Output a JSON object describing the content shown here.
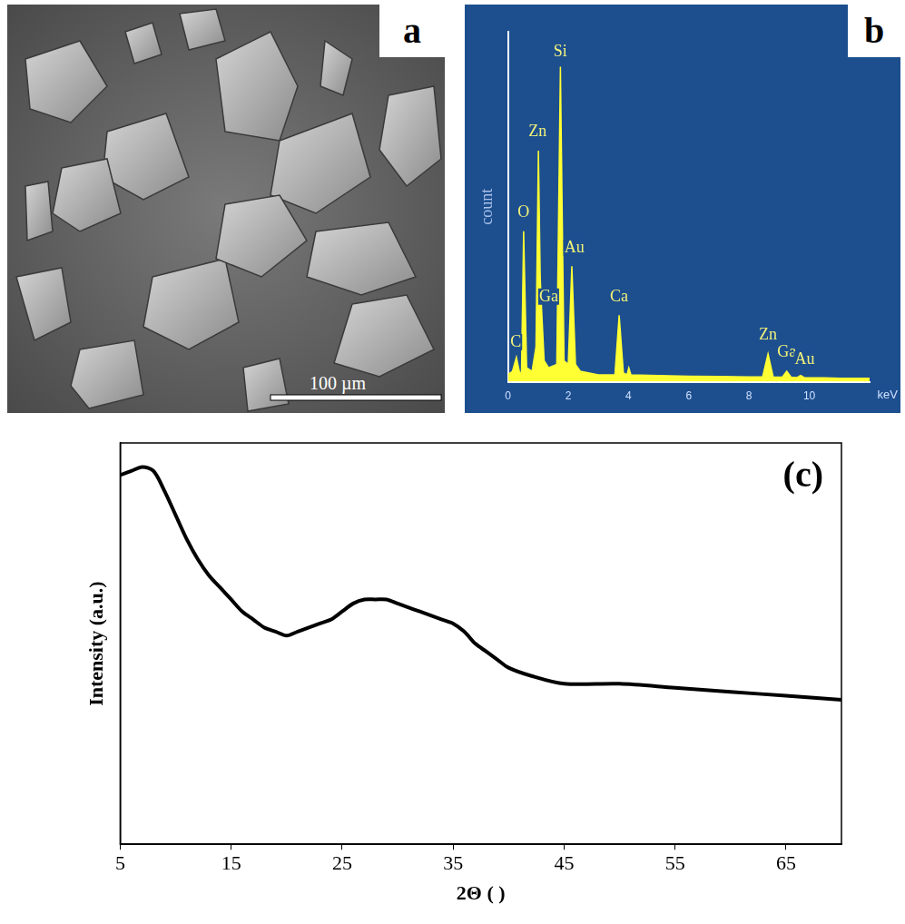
{
  "micrograph": {
    "panel": "a",
    "scale_bar": "100 µm"
  },
  "chart_data": [
    {
      "type": "line",
      "panel": "b",
      "xlabel": "keV",
      "ylabel": "count",
      "x": [
        0,
        0.15,
        0.28,
        0.4,
        0.45,
        0.52,
        0.62,
        0.8,
        0.93,
        1.01,
        1.07,
        1.12,
        1.2,
        1.35,
        1.62,
        1.74,
        1.86,
        2.0,
        2.12,
        2.24,
        2.4,
        3.0,
        3.55,
        3.69,
        3.83,
        3.95,
        4.01,
        4.08,
        5,
        6,
        7,
        8,
        8.45,
        8.63,
        8.8,
        9.1,
        9.25,
        9.4,
        9.6,
        9.71,
        9.83,
        10.5,
        11,
        12
      ],
      "values": [
        2,
        3,
        7,
        2,
        3,
        43,
        4,
        3,
        10,
        66,
        30,
        20,
        6,
        4,
        5,
        90,
        6,
        5,
        33,
        5,
        3,
        2,
        2,
        19,
        2.5,
        2,
        4,
        2,
        1.8,
        1.6,
        1.5,
        1.4,
        1.4,
        8,
        1.4,
        1.3,
        3,
        1.3,
        1.2,
        1.8,
        1.2,
        1.1,
        1,
        1
      ],
      "color": "#ffff33",
      "xlim": [
        0,
        12
      ],
      "xticks": [
        0,
        2,
        4,
        6,
        8,
        10
      ],
      "ylim": [
        0,
        100
      ],
      "tick_labels": "x",
      "grid": false,
      "annotations": [
        {
          "text": "C",
          "x": 0.26,
          "y": 9
        },
        {
          "text": "O",
          "x": 0.52,
          "y": 46
        },
        {
          "text": "Zn",
          "x": 0.98,
          "y": 69
        },
        {
          "text": "Ga",
          "x": 1.35,
          "y": 22
        },
        {
          "text": "Si",
          "x": 1.74,
          "y": 92
        },
        {
          "text": "Au",
          "x": 2.2,
          "y": 36
        },
        {
          "text": "Ca",
          "x": 3.69,
          "y": 22
        },
        {
          "text": "Zn",
          "x": 8.63,
          "y": 11
        },
        {
          "text": "Ga",
          "x": 9.25,
          "y": 6
        },
        {
          "text": "Au",
          "x": 9.85,
          "y": 4
        }
      ]
    },
    {
      "type": "line",
      "panel": "(c)",
      "xlabel": "2Θ ( )",
      "ylabel": "Intensity (a.u.)",
      "x": [
        5,
        6,
        7,
        8,
        9,
        10,
        11,
        12,
        13,
        14,
        15,
        16,
        17,
        18,
        19,
        20,
        21,
        22,
        23,
        24,
        25,
        26,
        27,
        28,
        29,
        30,
        31,
        32,
        33,
        34,
        35,
        36,
        37,
        38,
        39,
        40,
        42,
        45,
        50,
        55,
        60,
        65,
        70
      ],
      "values": [
        92,
        93,
        94,
        93,
        88,
        82,
        76,
        71,
        67,
        64,
        61,
        58,
        56,
        54,
        53,
        52,
        53,
        54,
        55,
        56,
        58,
        60,
        61,
        61,
        61,
        60,
        59,
        58,
        57,
        56,
        55,
        53,
        50,
        48,
        46,
        44,
        42,
        40,
        40,
        39,
        38,
        37,
        36
      ],
      "color": "#000000",
      "xlim": [
        5,
        70
      ],
      "xticks": [
        5,
        15,
        25,
        35,
        45,
        55,
        65
      ],
      "ylim": [
        0,
        100
      ],
      "tick_labels": "x",
      "grid": false
    }
  ]
}
